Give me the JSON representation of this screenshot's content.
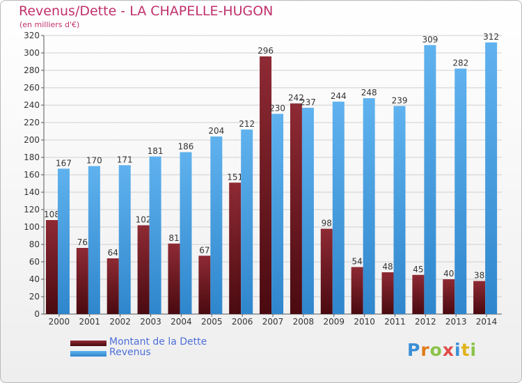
{
  "title": "Revenus/Dette - LA CHAPELLE-HUGON",
  "subtitle": "(en milliers d'€)",
  "logo": "Proxiti",
  "colors": {
    "dette": "#7a1a24",
    "revenus": "#4aa3e6",
    "title": "#c0306b",
    "legend_text": "#4d6fd8"
  },
  "chart_data": {
    "type": "bar",
    "categories": [
      "2000",
      "2001",
      "2002",
      "2003",
      "2004",
      "2005",
      "2006",
      "2007",
      "2008",
      "2009",
      "2010",
      "2011",
      "2012",
      "2013",
      "2014"
    ],
    "series": [
      {
        "name": "Montant de la Dette",
        "values": [
          108,
          76,
          64,
          102,
          81,
          67,
          151,
          296,
          242,
          98,
          54,
          48,
          45,
          40,
          38
        ]
      },
      {
        "name": "Revenus",
        "values": [
          167,
          170,
          171,
          181,
          186,
          204,
          212,
          230,
          237,
          244,
          248,
          239,
          309,
          282,
          312
        ]
      }
    ],
    "ylim": [
      0,
      320
    ],
    "yticks": [
      0,
      20,
      40,
      60,
      80,
      100,
      120,
      140,
      160,
      180,
      200,
      220,
      240,
      260,
      280,
      300,
      320
    ],
    "grid": true,
    "legend": "bottom-left"
  }
}
